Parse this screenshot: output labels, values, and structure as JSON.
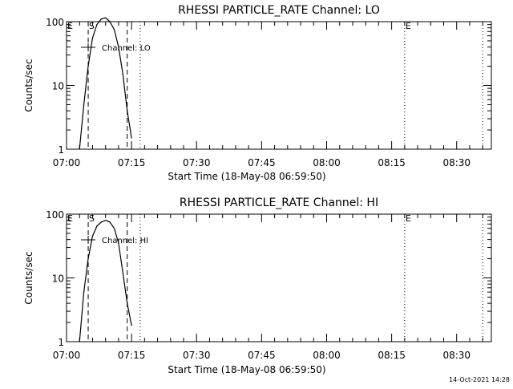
{
  "footer": {
    "timestamp": "14-Oct-2021 14:28"
  },
  "chart_data": [
    {
      "type": "line",
      "title": "RHESSI PARTICLE_RATE Channel: LO",
      "xlabel": "Start Time (18-May-08 06:59:50)",
      "ylabel": "Counts/sec",
      "y_scale": "log",
      "ylim": [
        1,
        100
      ],
      "y_ticks": [
        1,
        10,
        100
      ],
      "y_tick_labels": [
        "1",
        "10",
        "100"
      ],
      "x_tick_labels": [
        "07:00",
        "07:15",
        "07:30",
        "07:45",
        "08:00",
        "08:15",
        "08:30"
      ],
      "xlim": [
        "07:00",
        "08:38"
      ],
      "legend": {
        "label": "Channel: LO",
        "placement": "top-left"
      },
      "event_lines": [
        {
          "time": "07:05",
          "style": "dashed",
          "label": "S"
        },
        {
          "time": "07:14",
          "style": "dashed",
          "label": ""
        },
        {
          "time": "07:17",
          "style": "dotted",
          "label": ""
        },
        {
          "time": "08:18",
          "style": "dotted",
          "label": "E"
        },
        {
          "time": "08:36",
          "style": "dotted",
          "label": ""
        }
      ],
      "edge_label": "E",
      "series": [
        {
          "name": "Channel: LO",
          "x": [
            "07:03",
            "07:04",
            "07:05",
            "07:06",
            "07:07",
            "07:08",
            "07:09",
            "07:10",
            "07:11",
            "07:12",
            "07:13",
            "07:14",
            "07:15"
          ],
          "y": [
            1,
            5,
            20,
            55,
            90,
            110,
            115,
            100,
            75,
            40,
            15,
            4,
            1.5
          ]
        }
      ]
    },
    {
      "type": "line",
      "title": "RHESSI PARTICLE_RATE Channel: HI",
      "xlabel": "Start Time (18-May-08 06:59:50)",
      "ylabel": "Counts/sec",
      "y_scale": "log",
      "ylim": [
        1,
        100
      ],
      "y_ticks": [
        1,
        10,
        100
      ],
      "y_tick_labels": [
        "1",
        "10",
        "100"
      ],
      "x_tick_labels": [
        "07:00",
        "07:15",
        "07:30",
        "07:45",
        "08:00",
        "08:15",
        "08:30"
      ],
      "xlim": [
        "07:00",
        "08:38"
      ],
      "legend": {
        "label": "Channel: HI",
        "placement": "top-left"
      },
      "event_lines": [
        {
          "time": "07:05",
          "style": "dashed",
          "label": "S"
        },
        {
          "time": "07:14",
          "style": "dashed",
          "label": ""
        },
        {
          "time": "07:17",
          "style": "dotted",
          "label": ""
        },
        {
          "time": "08:18",
          "style": "dotted",
          "label": "E"
        },
        {
          "time": "08:36",
          "style": "dotted",
          "label": ""
        }
      ],
      "edge_label": "E",
      "series": [
        {
          "name": "Channel: HI",
          "x": [
            "07:03",
            "07:04",
            "07:05",
            "07:06",
            "07:07",
            "07:08",
            "07:09",
            "07:10",
            "07:11",
            "07:12",
            "07:13",
            "07:14",
            "07:15"
          ],
          "y": [
            1,
            6,
            20,
            45,
            65,
            75,
            80,
            75,
            60,
            35,
            12,
            4,
            1.8
          ]
        }
      ]
    }
  ]
}
